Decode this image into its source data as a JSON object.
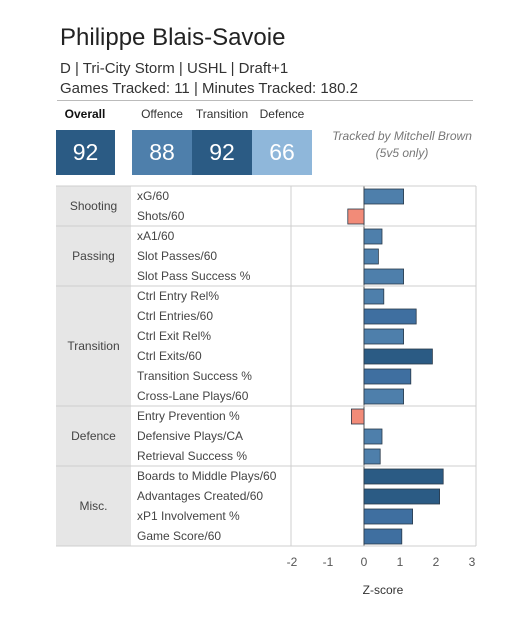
{
  "player": {
    "name": "Philippe Blais-Savoie",
    "info": "D | Tri-City Storm | USHL | Draft+1",
    "tracking": "Games Tracked: 11 | Minutes Tracked: 180.2"
  },
  "ratings": {
    "overall": {
      "label": "Overall",
      "value": "92",
      "color": "#2b5b84"
    },
    "offence": {
      "label": "Offence",
      "value": "88",
      "color": "#4e7fab"
    },
    "transition": {
      "label": "Transition",
      "value": "92",
      "color": "#2b5b84"
    },
    "defence": {
      "label": "Defence",
      "value": "66",
      "color": "#8fb7da"
    }
  },
  "note": {
    "line1": "Tracked by Mitchell Brown",
    "line2": "(5v5 only)"
  },
  "chart_data": {
    "type": "bar",
    "orientation": "horizontal",
    "xlabel": "Z-score",
    "xlim": [
      -2.2,
      3.1
    ],
    "xticks": [
      -2,
      -1,
      0,
      1,
      2,
      3
    ],
    "negative_color": "#f28b78",
    "groups": [
      {
        "name": "Shooting",
        "metrics": [
          {
            "label": "xG/60",
            "value": 1.1,
            "color": "#4e7fab"
          },
          {
            "label": "Shots/60",
            "value": -0.45,
            "color": "#f28b78"
          }
        ]
      },
      {
        "name": "Passing",
        "metrics": [
          {
            "label": "xA1/60",
            "value": 0.5,
            "color": "#4e7fab"
          },
          {
            "label": "Slot Passes/60",
            "value": 0.4,
            "color": "#4e7fab"
          },
          {
            "label": "Slot Pass Success %",
            "value": 1.1,
            "color": "#4e7fab"
          }
        ]
      },
      {
        "name": "Transition",
        "metrics": [
          {
            "label": "Ctrl Entry Rel%",
            "value": 0.55,
            "color": "#4e7fab"
          },
          {
            "label": "Ctrl Entries/60",
            "value": 1.45,
            "color": "#3f6fa0"
          },
          {
            "label": "Ctrl Exit Rel%",
            "value": 1.1,
            "color": "#4e7fab"
          },
          {
            "label": "Ctrl Exits/60",
            "value": 1.9,
            "color": "#2b5b84"
          },
          {
            "label": "Transition Success %",
            "value": 1.3,
            "color": "#3f6fa0"
          },
          {
            "label": "Cross-Lane Plays/60",
            "value": 1.1,
            "color": "#4e7fab"
          }
        ]
      },
      {
        "name": "Defence",
        "metrics": [
          {
            "label": "Entry Prevention %",
            "value": -0.35,
            "color": "#f28b78"
          },
          {
            "label": "Defensive Plays/CA",
            "value": 0.5,
            "color": "#4e7fab"
          },
          {
            "label": "Retrieval Success %",
            "value": 0.45,
            "color": "#4e7fab"
          }
        ]
      },
      {
        "name": "Misc.",
        "metrics": [
          {
            "label": "Boards to Middle Plays/60",
            "value": 2.2,
            "color": "#2b5b84"
          },
          {
            "label": "Advantages Created/60",
            "value": 2.1,
            "color": "#2b5b84"
          },
          {
            "label": "xP1 Involvement %",
            "value": 1.35,
            "color": "#3f6fa0"
          },
          {
            "label": "Game Score/60",
            "value": 1.05,
            "color": "#3f6fa0"
          }
        ]
      }
    ]
  }
}
